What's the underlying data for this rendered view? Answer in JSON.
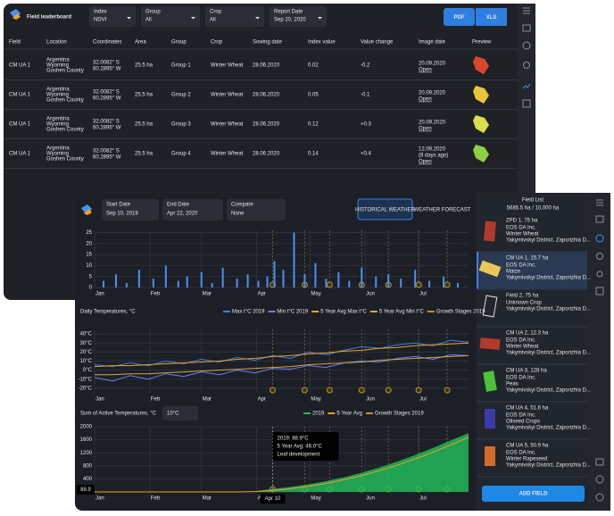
{
  "leaderboard": {
    "title": "Field leaderboard",
    "filters": [
      {
        "label": "Index",
        "value": "NDVI"
      },
      {
        "label": "Group",
        "value": "All"
      },
      {
        "label": "Crop",
        "value": "All"
      },
      {
        "label": "Report Date",
        "value": "Sep 20, 2020"
      }
    ],
    "buttons": [
      "PDF",
      "XLS"
    ],
    "columns": [
      "Field",
      "Location",
      "Coordinates",
      "Area",
      "Group",
      "Crop",
      "Sowing date",
      "Index value",
      "Value change",
      "Image date",
      "Preview"
    ],
    "rows": [
      {
        "field": "CM UA 1",
        "location": [
          "Argentina",
          "Wyoming",
          "Goshen County"
        ],
        "coordinates": [
          "32.0082° S",
          "60.2895° W"
        ],
        "area": "25.5 ha",
        "group": "Group 1",
        "crop": "Winter Wheat",
        "sowing": "28.06.2020",
        "index": "0.02",
        "index_color": "#e5533d",
        "change": "-0.2",
        "change_color": "#e5533d",
        "image_date": [
          "20.09.2020"
        ],
        "link": "Open",
        "preview_color": "#d9482b"
      },
      {
        "field": "CM UA 1",
        "location": [
          "Argentina",
          "Wyoming",
          "Goshen County"
        ],
        "coordinates": [
          "32.0082° S",
          "60.2895° W"
        ],
        "area": "25.5 ha",
        "group": "Group 2",
        "crop": "Winter Wheat",
        "sowing": "28.06.2020",
        "index": "0.05",
        "index_color": "#e8823a",
        "change": "-0.1",
        "change_color": "#e8823a",
        "image_date": [
          "20.09.2020"
        ],
        "link": "Open",
        "preview_color": "#e9c53a"
      },
      {
        "field": "CM UA 1",
        "location": [
          "Argentina",
          "Wyoming",
          "Goshen County"
        ],
        "coordinates": [
          "32.0082° S",
          "60.2895° W"
        ],
        "area": "25.5 ha",
        "group": "Group 3",
        "crop": "Winter Wheat",
        "sowing": "28.06.2020",
        "index": "0.12",
        "index_color": "#8bbf3c",
        "change": "+0.3",
        "change_color": "#8bbf3c",
        "image_date": [
          "20.09.2020"
        ],
        "link": "Open",
        "preview_color": "#d7e04a"
      },
      {
        "field": "CM UA 1",
        "location": [
          "Argentina",
          "Wyoming",
          "Goshen County"
        ],
        "coordinates": [
          "32.0082° S",
          "60.2895° W"
        ],
        "area": "25.5 ha",
        "group": "Group 4",
        "crop": "Winter Wheat",
        "sowing": "28.06.2020",
        "index": "0.14",
        "index_color": "#4cb34c",
        "change": "+0.4",
        "change_color": "#4cb34c",
        "image_date": [
          "12.09.2020",
          "(8 days ago)"
        ],
        "link": "Open",
        "preview_color": "#8fcf45"
      }
    ]
  },
  "weather": {
    "controls": [
      {
        "label": "Start Date",
        "value": "Sep 10, 2019"
      },
      {
        "label": "End Date",
        "value": "Apr 22, 2020"
      },
      {
        "label": "Compare",
        "value": "None"
      }
    ],
    "tabs": [
      "HISTORICAL WEATHER",
      "WEATHER FORECAST"
    ],
    "xlim": [
      0,
      210
    ],
    "xticks": [
      {
        "value": 0,
        "label": "Jan"
      },
      {
        "value": 31,
        "label": "Feb"
      },
      {
        "value": 60,
        "label": "Mar"
      },
      {
        "value": 91,
        "label": "Apr"
      },
      {
        "value": 121,
        "label": "May"
      },
      {
        "value": 152,
        "label": "Jun"
      },
      {
        "value": 182,
        "label": "Jul"
      }
    ],
    "growth_stages": [
      100,
      118,
      132,
      150,
      165,
      182,
      198
    ],
    "precipitation": {
      "type": "bar",
      "color": "#4c8ff5",
      "ylim": [
        0,
        26
      ],
      "yticks": [
        0,
        5,
        10,
        15,
        20,
        25
      ],
      "x": [
        5,
        12,
        18,
        25,
        33,
        40,
        47,
        52,
        60,
        66,
        72,
        80,
        86,
        92,
        97,
        101,
        106,
        112,
        118,
        124,
        130,
        137,
        143,
        150,
        158,
        165,
        172,
        180,
        188,
        196,
        204
      ],
      "values": [
        3,
        6,
        2,
        8,
        4,
        10,
        3,
        5,
        7,
        2,
        9,
        4,
        6,
        3,
        5,
        12,
        8,
        25,
        6,
        11,
        4,
        7,
        3,
        9,
        5,
        6,
        4,
        8,
        3,
        5,
        2
      ]
    },
    "temperature": {
      "type": "line",
      "title": "Daily Temperatures, °C",
      "ylim": [
        -25,
        45
      ],
      "yticks": [
        {
          "value": -20,
          "label": "-20°C"
        },
        {
          "value": -10,
          "label": "-10°C"
        },
        {
          "value": 0,
          "label": "0°C"
        },
        {
          "value": 10,
          "label": "10°C"
        },
        {
          "value": 20,
          "label": "20°C"
        },
        {
          "value": 30,
          "label": "30°C"
        },
        {
          "value": 40,
          "label": "40°C"
        }
      ],
      "x": [
        0,
        10,
        20,
        30,
        40,
        50,
        60,
        70,
        80,
        90,
        100,
        110,
        120,
        130,
        140,
        150,
        160,
        170,
        180,
        190,
        200,
        210
      ],
      "series": [
        {
          "name": "Max t°C 2019",
          "color": "#3b7ff0",
          "values": [
            6,
            4,
            8,
            5,
            10,
            7,
            12,
            9,
            14,
            11,
            16,
            13,
            20,
            17,
            22,
            26,
            24,
            28,
            30,
            27,
            33,
            31
          ]
        },
        {
          "name": "Min t°C 2019",
          "color": "#6f7df5",
          "values": [
            -8,
            -12,
            -6,
            -10,
            -4,
            -7,
            -2,
            -5,
            0,
            -3,
            2,
            1,
            5,
            3,
            8,
            10,
            9,
            13,
            15,
            12,
            17,
            16
          ]
        },
        {
          "name": "5 Year Avg Max t°C",
          "color": "#f0a020",
          "values": [
            4,
            5,
            5,
            6,
            7,
            8,
            9,
            10,
            12,
            13,
            15,
            16,
            18,
            19,
            21,
            22,
            24,
            25,
            27,
            28,
            29,
            30
          ]
        },
        {
          "name": "5 Year Avg Min t°C",
          "color": "#d4a64a",
          "values": [
            -5,
            -5,
            -4,
            -4,
            -3,
            -2,
            -1,
            0,
            1,
            2,
            3,
            4,
            6,
            7,
            8,
            9,
            11,
            12,
            13,
            14,
            15,
            16
          ]
        }
      ],
      "stages_name": "Growth Stages 2019"
    },
    "active": {
      "type": "area",
      "title": "Sum of Active Temperatures, °C",
      "threshold": "10°C",
      "ylim": [
        0,
        2000
      ],
      "yticks": [
        0,
        400,
        800,
        1200,
        1600,
        2000
      ],
      "x": [
        0,
        10,
        20,
        30,
        40,
        50,
        60,
        70,
        80,
        90,
        100,
        110,
        120,
        130,
        140,
        150,
        160,
        170,
        180,
        190,
        200,
        210
      ],
      "series": [
        {
          "name": "2019",
          "color": "#22b85a",
          "values": [
            0,
            0,
            0,
            0,
            0,
            0,
            0,
            0,
            0,
            20,
            88.9,
            150,
            230,
            330,
            450,
            590,
            750,
            930,
            1130,
            1350,
            1580,
            1800
          ]
        },
        {
          "name": "5 Year Avg",
          "color": "#f0a020",
          "values": [
            0,
            0,
            0,
            0,
            0,
            0,
            0,
            0,
            0,
            10,
            46,
            100,
            170,
            260,
            370,
            500,
            650,
            820,
            1010,
            1220,
            1440,
            1680
          ]
        }
      ],
      "stages_name": "Growth Stages 2019",
      "tooltip": [
        "2019: 88.9°C",
        "5 Year Avg: 46.0°C",
        "Leaf development"
      ],
      "cursor": {
        "x": 100,
        "y_label": "88.9",
        "x_label": "Apr 10"
      }
    }
  },
  "field_list": {
    "title": "Field List",
    "subtitle": "5685.5 ha / 10,000 ha",
    "button": "ADD FIELD",
    "items": [
      {
        "name": "ZPD 1, 75 ha",
        "lines": [
          "EOS DA Inc.",
          "Winter Wheat",
          "Yakymivskyi District, Zaporizhia D..."
        ],
        "color": "#b23a2c"
      },
      {
        "name": "CM UA 1, 15.7 ha",
        "lines": [
          "EOS DA Inc.",
          "Maize",
          "Yakymivskyi District, Zaporizhia D..."
        ],
        "color": "#e9c857"
      },
      {
        "name": "Field 2, 75 ha",
        "lines": [
          "Unknown Crop",
          "Yakymivskyi District, Zaporizhia D..."
        ],
        "color": "none"
      },
      {
        "name": "CM UA 2, 12.3 ha",
        "lines": [
          "EOS DA Inc.",
          "Winter Wheat",
          "Yakymivskyi District, Zaporizhia D..."
        ],
        "color": "#b23a2c"
      },
      {
        "name": "CM UA 3, 128 ha",
        "lines": [
          "EOS DA Inc.",
          "Peas",
          "Yakymivskyi District, Zaporizhia D..."
        ],
        "color": "#4cc23a"
      },
      {
        "name": "CM UA 4, 51.6 ha",
        "lines": [
          "EOS DA Inc.",
          "Oilseed Crops",
          "Yakymivskyi District, Zaporizhia D..."
        ],
        "color": "#3a3aa8"
      },
      {
        "name": "CM UA 5, 50.9 ha",
        "lines": [
          "EOS DA Inc.",
          "Winter Rapeseed",
          "Yakymivskyi District, Zaporizhia D..."
        ],
        "color": "#d86a28"
      }
    ]
  }
}
